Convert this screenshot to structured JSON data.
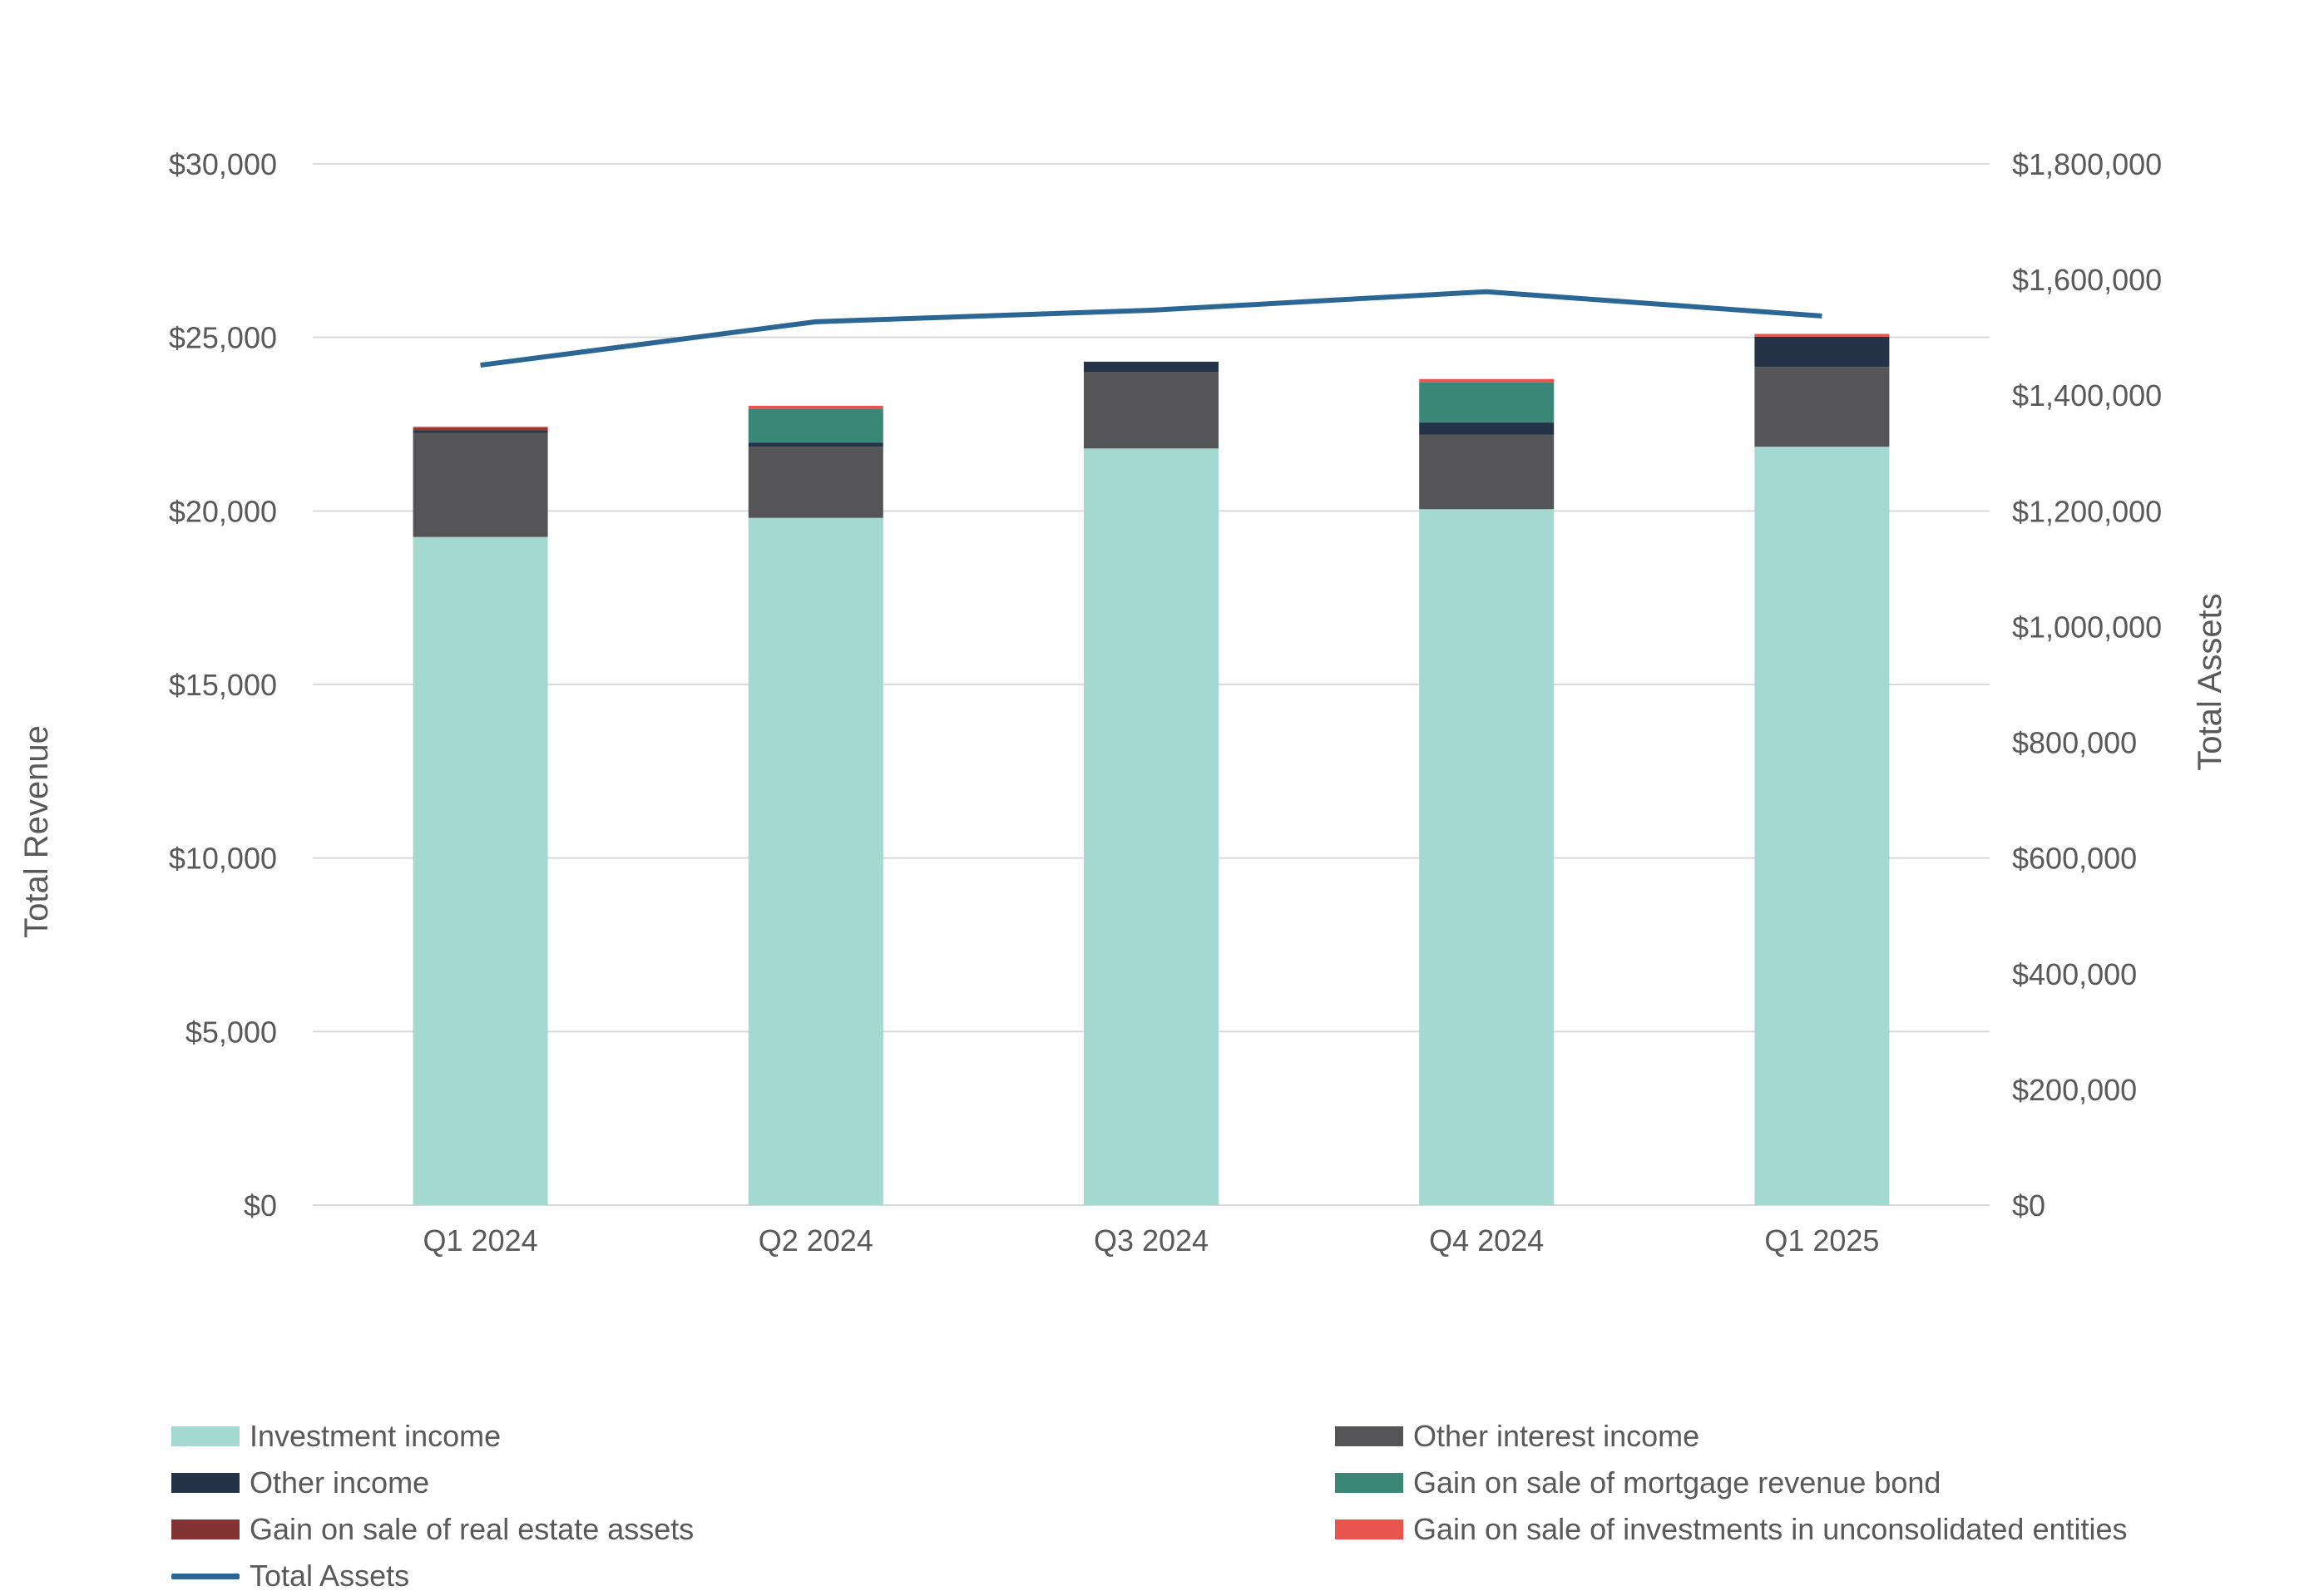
{
  "chart_data": {
    "type": "bar",
    "stacked": true,
    "categories": [
      "Q1 2024",
      "Q2 2024",
      "Q3 2024",
      "Q4 2024",
      "Q1 2025"
    ],
    "series": [
      {
        "name": "Investment income",
        "color": "#A3D9D0",
        "values": [
          19250,
          19800,
          21800,
          20050,
          21850
        ]
      },
      {
        "name": "Other interest income",
        "color": "#555558",
        "values": [
          3000,
          2050,
          2200,
          2150,
          2300
        ]
      },
      {
        "name": "Other income",
        "color": "#253348",
        "values": [
          60,
          120,
          300,
          350,
          870
        ]
      },
      {
        "name": "Gain on sale of mortgage revenue bond",
        "color": "#3A8777",
        "values": [
          0,
          980,
          0,
          1150,
          0
        ]
      },
      {
        "name": "Gain on sale of real estate assets",
        "color": "#833333",
        "values": [
          80,
          0,
          0,
          0,
          0
        ]
      },
      {
        "name": "Gain on sale of investments in unconsolidated entities",
        "color": "#E8554E",
        "values": [
          40,
          80,
          0,
          100,
          80
        ]
      }
    ],
    "line_series": {
      "name": "Total Assets",
      "color": "#2B6695",
      "axis": "right",
      "values": [
        1452000,
        1527000,
        1547000,
        1579000,
        1537000
      ]
    },
    "ylabel": "Total Revenue",
    "y2label": "Total Assets",
    "ylim": [
      0,
      30000
    ],
    "y2lim": [
      0,
      1800000
    ],
    "yticks": [
      "$0",
      "$5,000",
      "$10,000",
      "$15,000",
      "$20,000",
      "$25,000",
      "$30,000"
    ],
    "y2ticks": [
      "$0",
      "$200,000",
      "$400,000",
      "$600,000",
      "$800,000",
      "$1,000,000",
      "$1,200,000",
      "$1,400,000",
      "$1,600,000",
      "$1,800,000"
    ],
    "grid": true,
    "legend_position": "bottom"
  }
}
